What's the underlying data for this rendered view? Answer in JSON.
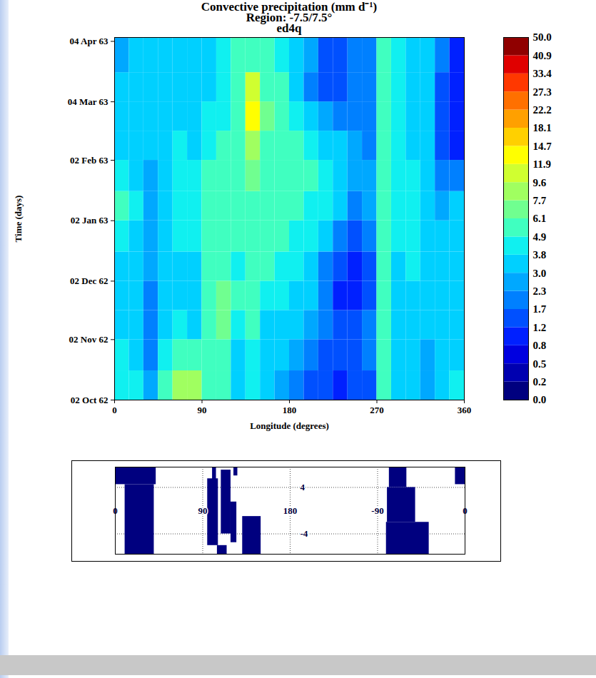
{
  "chart_data": {
    "type": "heatmap",
    "title": "Convective precipitation (mm d⁻¹)",
    "subtitle": [
      "Region: -7.5/7.5°",
      "ed4q"
    ],
    "x_label": "Longitude (degrees)",
    "y_label": "Time (days)",
    "xlim": [
      0,
      360
    ],
    "xticks": [
      0,
      90,
      180,
      270,
      360
    ],
    "ylim": [
      "1962-10-02",
      "1963-04-06"
    ],
    "yticks": [
      {
        "value": "1962-10-02",
        "label": "02 Oct 62"
      },
      {
        "value": "1962-11-02",
        "label": "02 Nov 62"
      },
      {
        "value": "1962-12-02",
        "label": "02 Dec 62"
      },
      {
        "value": "1963-01-02",
        "label": "02 Jan 63"
      },
      {
        "value": "1963-02-02",
        "label": "02 Feb 63"
      },
      {
        "value": "1963-03-04",
        "label": "04 Mar 63"
      },
      {
        "value": "1963-04-04",
        "label": "04 Apr 63"
      }
    ],
    "lon_edges": [
      0,
      15,
      30,
      45,
      60,
      75,
      90,
      105,
      120,
      135,
      150,
      165,
      180,
      195,
      210,
      225,
      240,
      255,
      270,
      285,
      300,
      315,
      330,
      345,
      360
    ],
    "time_edges": [
      "1962-10-02",
      "1962-10-17",
      "1962-11-02",
      "1962-11-17",
      "1962-12-02",
      "1962-12-17",
      "1963-01-02",
      "1963-01-17",
      "1963-02-02",
      "1963-02-17",
      "1963-03-04",
      "1963-03-19",
      "1963-04-06"
    ],
    "cells": [
      [
        4,
        4,
        2.5,
        5,
        9,
        8,
        6,
        5,
        3,
        4,
        3,
        2.5,
        2,
        1.5,
        1.2,
        1,
        1.2,
        1.5,
        5,
        3,
        3,
        2.5,
        3,
        4
      ],
      [
        4,
        3.5,
        2,
        4,
        6,
        5,
        5,
        6,
        3.5,
        4,
        3,
        3,
        2.5,
        2,
        1.5,
        1.2,
        1.5,
        2,
        5,
        3,
        3,
        2.5,
        3,
        3.5
      ],
      [
        3.5,
        3,
        2,
        3,
        4,
        3.5,
        6,
        7,
        4,
        5,
        3.5,
        3.5,
        3,
        2.5,
        2,
        1.5,
        1.5,
        2,
        5,
        3.5,
        3,
        3,
        3,
        3
      ],
      [
        3.5,
        3,
        2,
        3,
        3,
        3.5,
        6,
        7,
        5,
        5,
        4,
        4,
        3.5,
        3,
        2,
        1,
        0.8,
        1.5,
        5,
        3.5,
        3.5,
        3,
        3,
        3
      ],
      [
        3.5,
        3,
        2.5,
        3,
        3.5,
        3.5,
        5,
        6,
        4,
        5,
        5,
        4.5,
        4,
        3,
        2,
        1.2,
        1,
        1.5,
        5,
        3.5,
        4,
        3,
        3,
        3.5
      ],
      [
        4,
        3.5,
        2.5,
        3,
        4,
        4,
        5,
        6,
        5,
        6,
        6,
        5,
        4.5,
        4,
        3,
        2,
        1.5,
        2,
        5,
        4,
        4,
        3.5,
        3,
        3.5
      ],
      [
        5,
        4,
        2.5,
        3.5,
        4,
        4,
        5,
        6,
        6,
        6,
        6,
        6,
        5,
        4.5,
        4,
        3,
        2,
        2.5,
        5,
        4,
        4,
        3.5,
        2.5,
        3
      ],
      [
        4,
        3.5,
        2.5,
        3.5,
        4,
        4,
        5,
        5,
        6,
        7,
        6,
        5.5,
        5,
        5,
        4,
        3.5,
        2.5,
        2.5,
        5,
        4,
        4,
        3,
        2,
        2
      ],
      [
        3.5,
        3.5,
        3,
        3.5,
        4,
        3.5,
        4,
        5,
        6,
        9,
        6,
        5,
        5,
        4,
        3.5,
        3,
        2.5,
        2,
        5,
        4,
        3.5,
        3,
        1.5,
        1
      ],
      [
        3.5,
        3,
        3,
        3,
        3.5,
        3.5,
        4,
        4.5,
        6,
        12,
        7,
        5,
        4,
        3,
        2.5,
        2,
        2,
        2,
        5,
        4,
        3.5,
        3,
        1.5,
        0.8
      ],
      [
        3,
        3,
        3,
        3,
        3,
        3,
        3.5,
        4,
        5,
        10,
        6,
        5,
        3.5,
        2,
        1.5,
        1.5,
        2,
        2,
        5,
        4,
        3.5,
        3,
        1.5,
        0.8
      ],
      [
        2.5,
        3,
        3,
        3,
        3,
        3,
        3.5,
        4,
        5,
        6,
        5,
        4.5,
        3.5,
        2.5,
        1.5,
        1.5,
        2,
        2,
        5,
        4,
        3.5,
        3,
        2,
        1
      ]
    ],
    "colorbar": {
      "ticks": [
        {
          "value": 0,
          "label": "0.0"
        },
        0.2,
        0.5,
        0.8,
        1.2,
        1.7,
        2.3,
        {
          "value": 3,
          "label": "3.0"
        },
        3.8,
        4.9,
        6.1,
        7.7,
        9.6,
        11.9,
        14.7,
        18.1,
        22.2,
        27.3,
        33.4,
        40.9,
        {
          "value": 50,
          "label": "50.0"
        }
      ],
      "colors": [
        "#00007f",
        "#0000b0",
        "#0000e0",
        "#0020ff",
        "#0050ff",
        "#0080ff",
        "#00a8ff",
        "#00d0ff",
        "#10f0f0",
        "#40ffc0",
        "#70ff90",
        "#a0ff60",
        "#d0ff30",
        "#ffff00",
        "#ffd000",
        "#ffa000",
        "#ff7000",
        "#ff3800",
        "#e00000",
        "#900000"
      ]
    },
    "inset": {
      "type": "map",
      "xlim": [
        0,
        360
      ],
      "ylim": [
        -7.5,
        7.5
      ],
      "xticks": [
        0,
        90,
        180,
        {
          "value": 270,
          "label": "-90"
        },
        {
          "value": 360,
          "label": "0"
        }
      ],
      "yticks": [
        -4,
        4
      ],
      "grid": true,
      "color": "#00007f",
      "land": [
        [
          10,
          40,
          -7.5,
          4.5
        ],
        [
          0,
          42,
          4.5,
          7.5
        ],
        [
          350,
          360,
          4.5,
          7.5
        ],
        [
          95,
          106,
          -6,
          5.5
        ],
        [
          100,
          104,
          1.5,
          7.5
        ],
        [
          105,
          115,
          -7.5,
          -6
        ],
        [
          109,
          119,
          -4,
          7
        ],
        [
          119,
          125,
          -5.5,
          1.5
        ],
        [
          122,
          126,
          6,
          7.5
        ],
        [
          131,
          150,
          -7.5,
          -1
        ],
        [
          282,
          300,
          4,
          7.5
        ],
        [
          280,
          309,
          -2,
          4
        ],
        [
          279,
          323,
          -7.5,
          -2
        ]
      ]
    }
  }
}
